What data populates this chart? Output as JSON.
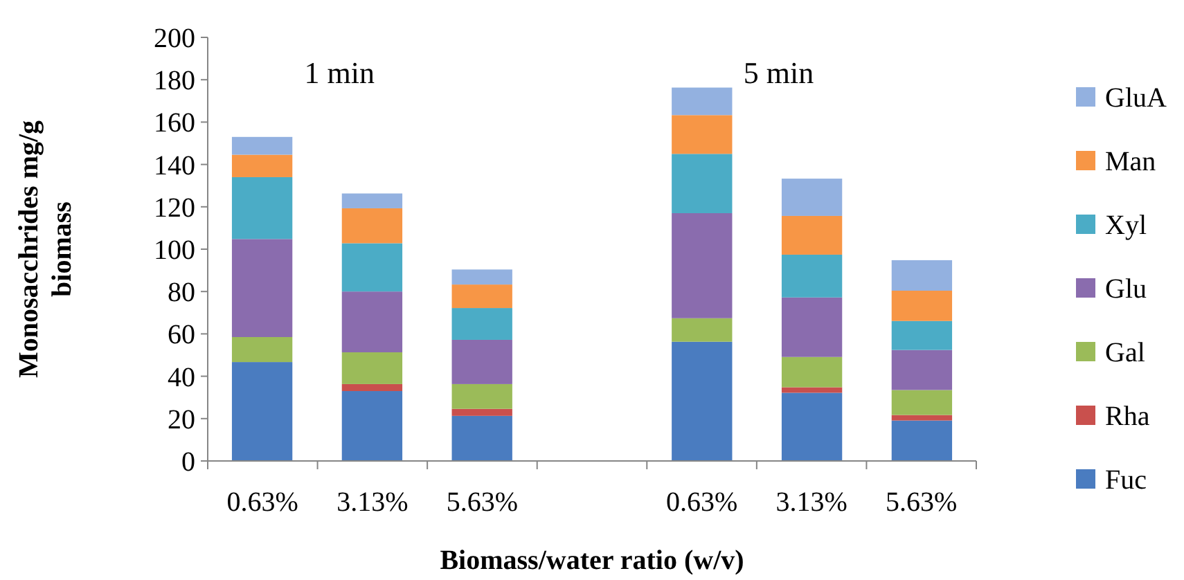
{
  "chart_data": {
    "type": "bar",
    "stacked": true,
    "xlabel": "Biomass/water ratio  (w/v)",
    "ylabel": "Monosacchrides  mg/g biomass",
    "categories": [
      "0.63%",
      "3.13%",
      "5.63%",
      null,
      "0.63%",
      "3.13%",
      "5.63%"
    ],
    "series": [
      {
        "name": "Fuc",
        "color": "#4a7cc0",
        "values": [
          46.7,
          33,
          21.3,
          null,
          56.3,
          32.2,
          19.1
        ]
      },
      {
        "name": "Rha",
        "color": "#c9504d",
        "values": [
          0,
          3.3,
          3.3,
          null,
          0,
          2.6,
          2.6
        ]
      },
      {
        "name": "Gal",
        "color": "#9bbb59",
        "values": [
          11.8,
          15,
          11.7,
          null,
          11.1,
          14.3,
          11.8
        ]
      },
      {
        "name": "Glu",
        "color": "#8a6cae",
        "values": [
          46.3,
          28.7,
          20.9,
          null,
          49.6,
          28.1,
          18.9
        ]
      },
      {
        "name": "Xyl",
        "color": "#4bacc6",
        "values": [
          29.2,
          22.8,
          15,
          null,
          28,
          20.2,
          13.7
        ]
      },
      {
        "name": "Man",
        "color": "#f79646",
        "values": [
          10.6,
          16.5,
          11.1,
          null,
          18.3,
          18.3,
          14.3
        ]
      },
      {
        "name": "GluA",
        "color": "#93b1e0",
        "values": [
          8.4,
          7,
          7.1,
          null,
          13,
          17.6,
          14.4
        ]
      }
    ],
    "ylim": [
      0,
      200
    ],
    "yticks": [
      0,
      20,
      40,
      60,
      80,
      100,
      120,
      140,
      160,
      180,
      200
    ],
    "annotations": [
      "1 min",
      "5 min"
    ],
    "legend": "right",
    "grid": false
  }
}
